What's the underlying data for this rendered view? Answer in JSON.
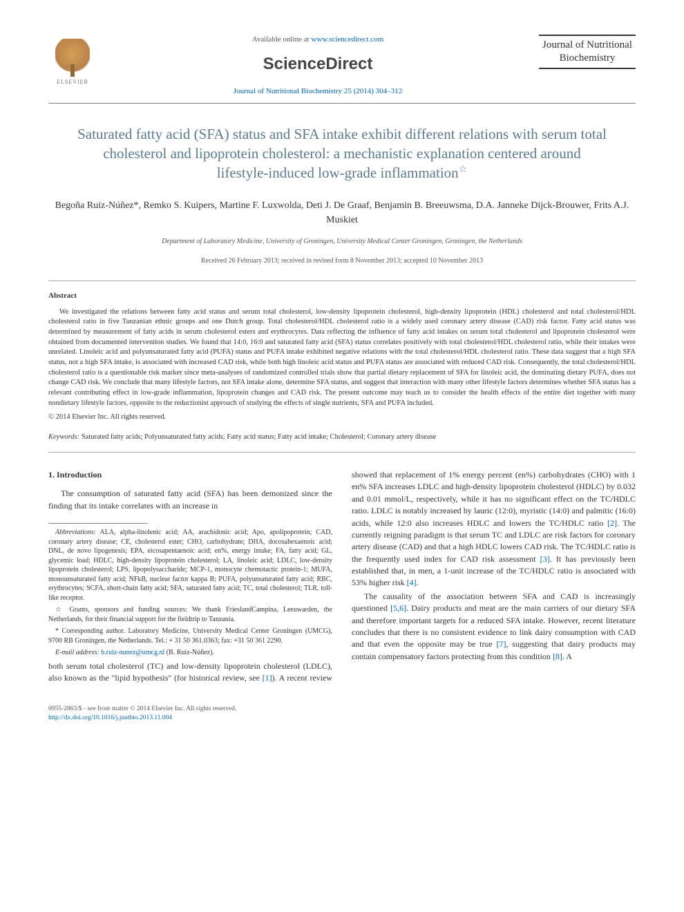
{
  "header": {
    "elsevier_label": "ELSEVIER",
    "available_text": "Available online at ",
    "available_url": "www.sciencedirect.com",
    "sciencedirect": "ScienceDirect",
    "journal_ref": "Journal of Nutritional Biochemistry 25 (2014) 304–312",
    "journal_box": "Journal of Nutritional Biochemistry"
  },
  "title": "Saturated fatty acid (SFA) status and SFA intake exhibit different relations with serum total cholesterol and lipoprotein cholesterol: a mechanistic explanation centered around lifestyle-induced low-grade inflammation",
  "authors": "Begoña Ruiz-Núñez*, Remko S. Kuipers, Martine F. Luxwolda, Deti J. De Graaf, Benjamin B. Breeuwsma, D.A. Janneke Dijck-Brouwer, Frits A.J. Muskiet",
  "affiliation": "Department of Laboratory Medicine, University of Groningen, University Medical Center Groningen, Groningen, the Netherlands",
  "dates": "Received 26 February 2013; received in revised form 8 November 2013; accepted 10 November 2013",
  "abstract_heading": "Abstract",
  "abstract": "We investigated the relations between fatty acid status and serum total cholesterol, low-density lipoprotein cholesterol, high-density lipoprotein (HDL) cholesterol and total cholesterol/HDL cholesterol ratio in five Tanzanian ethnic groups and one Dutch group. Total cholesterol/HDL cholesterol ratio is a widely used coronary artery disease (CAD) risk factor. Fatty acid status was determined by measurement of fatty acids in serum cholesterol esters and erythrocytes. Data reflecting the influence of fatty acid intakes on serum total cholesterol and lipoprotein cholesterol were obtained from documented intervention studies. We found that 14:0, 16:0 and saturated fatty acid (SFA) status correlates positively with total cholesterol/HDL cholesterol ratio, while their intakes were unrelated. Linoleic acid and polyunsaturated fatty acid (PUFA) status and PUFA intake exhibited negative relations with the total cholesterol/HDL cholesterol ratio. These data suggest that a high SFA status, not a high SFA intake, is associated with increased CAD risk, while both high linoleic acid status and PUFA status are associated with reduced CAD risk. Consequently, the total cholesterol/HDL cholesterol ratio is a questionable risk marker since meta-analyses of randomized controlled trials show that partial dietary replacement of SFA for linoleic acid, the dominating dietary PUFA, does not change CAD risk. We conclude that many lifestyle factors, not SFA intake alone, determine SFA status, and suggest that interaction with many other lifestyle factors determines whether SFA status has a relevant contributing effect in low-grade inflammation, lipoprotein changes and CAD risk. The present outcome may teach us to consider the health effects of the entire diet together with many nondietary lifestyle factors, opposite to the reductionist approach of studying the effects of single nutrients, SFA and PUFA included.",
  "copyright_abs": "© 2014 Elsevier Inc. All rights reserved.",
  "keywords_label": "Keywords:",
  "keywords": " Saturated fatty acids; Polyunsaturated fatty acids; Fatty acid status; Fatty acid intake; Cholesterol; Coronary artery disease",
  "section1_heading": "1. Introduction",
  "intro_p1": "The consumption of saturated fatty acid (SFA) has been demonized since the finding that its intake correlates with an increase in",
  "abbrev_label": "Abbreviations:",
  "abbrev_body": " ALA, alpha-linolenic acid; AA, arachidonic acid; Apo, apolipoprotein; CAD, coronary artery disease; CE, cholesterol ester; CHO, carbohydrate; DHA, docosahexaenoic acid; DNL, de novo lipogenesis; EPA, eicosapentaenoic acid; en%, energy intake; FA, fatty acid; GL, glycemic load; HDLC, high-density lipoprotein cholesterol; LA, linoleic acid; LDLC, low-density lipoprotein cholesterol; LPS, lipopolysaccharide; MCP-1, monocyte chemotactic protein-1; MUFA, monounsaturated fatty acid; NFkB, nuclear factor kappa B; PUFA, polyunsaturated fatty acid; RBC, erythrocytes; SCFA, short-chain fatty acid; SFA, saturated fatty acid; TC, total cholesterol; TLR, toll-like receptor.",
  "grants_note": "Grants, sponsors and funding sources: We thank FrieslandCampina, Leeuwarden, the Netherlands, for their financial support for the fieldtrip to Tanzania.",
  "corresp_note": "* Corresponding author. Laboratory Medicine, University Medical Center Groningen (UMCG), 9700 RB Groningen, the Netherlands. Tel.: + 31 50 361.0363; fax: +31 50 361 2290.",
  "email_label": "E-mail address:",
  "email": "b.ruiz-nunez@umcg.nl",
  "email_suffix": " (B. Ruiz-Núñez).",
  "col2_p1a": "both serum total cholesterol (TC) and low-density lipoprotein cholesterol (LDLC), also known as the \"lipid hypothesis\" (for historical review, see ",
  "ref1": "[1]",
  "col2_p1b": "). A recent review showed that replacement of 1% energy percent (en%) carbohydrates (CHO) with 1 en% SFA increases LDLC and high-density lipoprotein cholesterol (HDLC) by 0.032 and 0.01 mmol/L, respectively, while it has no significant effect on the TC/HDLC ratio. LDLC is notably increased by lauric (12:0), myristic (14:0) and palmitic (16:0) acids, while 12:0 also increases HDLC and lowers the TC/HDLC ratio ",
  "ref2": "[2]",
  "col2_p1c": ". The currently reigning paradigm is that serum TC and LDLC are risk factors for coronary artery disease (CAD) and that a high HDLC lowers CAD risk. The TC/HDLC ratio is the frequently used index for CAD risk assessment ",
  "ref3": "[3]",
  "col2_p1d": ". It has previously been established that, in men, a 1-unit increase of the TC/HDLC ratio is associated with 53% higher risk ",
  "ref4": "[4]",
  "col2_p1e": ".",
  "col2_p2a": "The causality of the association between SFA and CAD is increasingly questioned ",
  "ref56": "[5,6]",
  "col2_p2b": ". Dairy products and meat are the main carriers of our dietary SFA and therefore important targets for a reduced SFA intake. However, recent literature concludes that there is no consistent evidence to link dairy consumption with CAD and that even the opposite may be true ",
  "ref7": "[7]",
  "col2_p2c": ", suggesting that dairy products may contain compensatory factors protecting from this condition ",
  "ref8": "[8]",
  "col2_p2d": ". A",
  "footer": {
    "line1": "0955-2863/$ - see front matter © 2014 Elsevier Inc. All rights reserved.",
    "doi": "http://dx.doi.org/10.1016/j.jnutbio.2013.11.004"
  },
  "colors": {
    "title_color": "#5a7a8a",
    "link_color": "#0066aa",
    "text_color": "#333333",
    "muted": "#555555",
    "rule": "#888888"
  }
}
